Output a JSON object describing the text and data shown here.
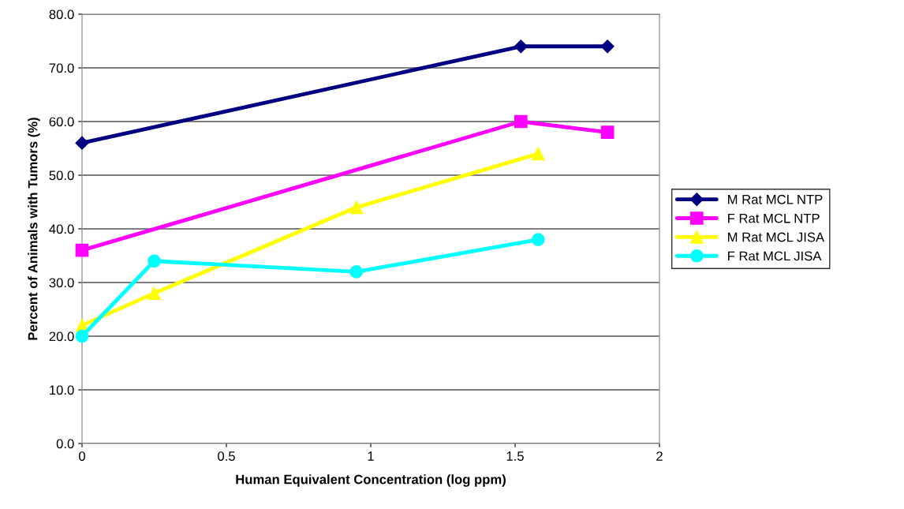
{
  "chart_data": {
    "type": "line",
    "xlabel": "Human Equivalent Concentration (log ppm)",
    "ylabel": "Percent of Animals with Tumors (%)",
    "xlim": [
      0,
      2
    ],
    "xticks": [
      0,
      {
        "value": 0.5,
        "label": "0.5"
      },
      1,
      {
        "value": 1.5,
        "label": "1.5"
      },
      2
    ],
    "ylim": [
      0,
      80
    ],
    "yticks": [
      {
        "value": 0,
        "label": "0.0"
      },
      {
        "value": 10,
        "label": "10.0"
      },
      {
        "value": 20,
        "label": "20.0"
      },
      {
        "value": 30,
        "label": "30.0"
      },
      {
        "value": 40,
        "label": "40.0"
      },
      {
        "value": 50,
        "label": "50.0"
      },
      {
        "value": 60,
        "label": "60.0"
      },
      {
        "value": 70,
        "label": "70.0"
      },
      {
        "value": 80,
        "label": "80.0"
      }
    ],
    "grid": "y",
    "legend": "right",
    "line_style": "solid",
    "series": [
      {
        "name": "M Rat MCL NTP",
        "color": "#000080",
        "marker": "diamond",
        "x": [
          0,
          1.52,
          1.82
        ],
        "values": [
          56,
          74,
          74
        ]
      },
      {
        "name": "F Rat MCL NTP",
        "color": "#ff00ff",
        "marker": "square",
        "x": [
          0,
          1.52,
          1.82
        ],
        "values": [
          36,
          60,
          58
        ]
      },
      {
        "name": "M Rat MCL JISA",
        "color": "#ffff00",
        "marker": "triangle",
        "x": [
          0,
          0.25,
          0.95,
          1.58
        ],
        "values": [
          22,
          28,
          44,
          54
        ]
      },
      {
        "name": "F Rat MCL JISA",
        "color": "#00ffff",
        "marker": "circle",
        "x": [
          0,
          0.25,
          0.95,
          1.58
        ],
        "values": [
          20,
          34,
          32,
          38
        ]
      }
    ]
  }
}
